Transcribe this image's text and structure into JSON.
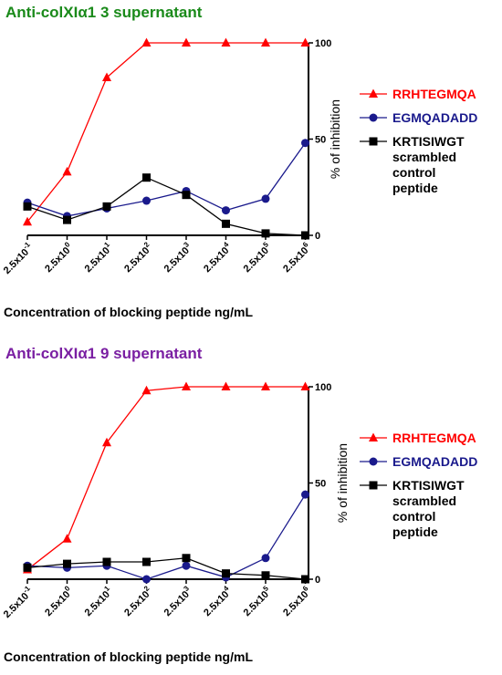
{
  "chart_data": [
    {
      "type": "line",
      "title": "Anti-colXIα1  3 supernatant",
      "title_color": "#1a8a1a",
      "categories": [
        "2.5x10-1",
        "2.5x100",
        "2.5x101",
        "2.5x102",
        "2.5x103",
        "2.5x104",
        "2.5x105",
        "2.5x106"
      ],
      "tick_labels": [
        {
          "base": "2.5x10",
          "exp": "-1"
        },
        {
          "base": "2.5x10",
          "exp": "0"
        },
        {
          "base": "2.5x10",
          "exp": "1"
        },
        {
          "base": "2.5x10",
          "exp": "2"
        },
        {
          "base": "2.5x10",
          "exp": "3"
        },
        {
          "base": "2.5x10",
          "exp": "4"
        },
        {
          "base": "2.5x10",
          "exp": "5"
        },
        {
          "base": "2.5x10",
          "exp": "6"
        }
      ],
      "xlabel": "Concentration of blocking peptide  ng/mL",
      "ylabel": "% of inhibition",
      "ylim": [
        0,
        100
      ],
      "yticks": [
        0,
        50,
        100
      ],
      "y_axis_side": "right",
      "legend_position": "right",
      "series": [
        {
          "name": "RRHTEGMQA",
          "color": "#ff0000",
          "marker": "triangle",
          "values": [
            7,
            33,
            82,
            100,
            100,
            100,
            100,
            100
          ]
        },
        {
          "name": "EGMQADADD",
          "color": "#1a1a8c",
          "marker": "circle",
          "values": [
            17,
            10,
            14,
            18,
            23,
            13,
            19,
            48
          ]
        },
        {
          "name": "KRTISIWGT",
          "name_lines": [
            "scrambled",
            "control",
            "peptide"
          ],
          "color": "#000000",
          "marker": "square",
          "values": [
            15,
            8,
            15,
            30,
            21,
            6,
            1,
            0
          ]
        }
      ]
    },
    {
      "type": "line",
      "title": "Anti-colXIα1  9 supernatant",
      "title_color": "#7a1fa2",
      "categories": [
        "2.5x10-1",
        "2.5x100",
        "2.5x101",
        "2.5x102",
        "2.5x103",
        "2.5x104",
        "2.5x105",
        "2.5x106"
      ],
      "tick_labels": [
        {
          "base": "2.5x10",
          "exp": "-1"
        },
        {
          "base": "2.5x10",
          "exp": "0"
        },
        {
          "base": "2.5x10",
          "exp": "1"
        },
        {
          "base": "2.5x10",
          "exp": "2"
        },
        {
          "base": "2.5x10",
          "exp": "3"
        },
        {
          "base": "2.5x10",
          "exp": "4"
        },
        {
          "base": "2.5x10",
          "exp": "5"
        },
        {
          "base": "2.5x10",
          "exp": "6"
        }
      ],
      "xlabel": "Concentration of blocking peptide  ng/mL",
      "ylabel": "% of inhibition",
      "ylim": [
        0,
        100
      ],
      "yticks": [
        0,
        50,
        100
      ],
      "y_axis_side": "right",
      "legend_position": "right",
      "series": [
        {
          "name": "RRHTEGMQA",
          "color": "#ff0000",
          "marker": "triangle",
          "values": [
            5,
            21,
            71,
            98,
            100,
            100,
            100,
            100
          ]
        },
        {
          "name": "EGMQADADD",
          "color": "#1a1a8c",
          "marker": "circle",
          "values": [
            7,
            6,
            7,
            0,
            7,
            1,
            11,
            44
          ]
        },
        {
          "name": "KRTISIWGT",
          "name_lines": [
            "scrambled",
            "control",
            "peptide"
          ],
          "color": "#000000",
          "marker": "square",
          "values": [
            6,
            8,
            9,
            9,
            11,
            3,
            2,
            0
          ]
        }
      ]
    }
  ]
}
